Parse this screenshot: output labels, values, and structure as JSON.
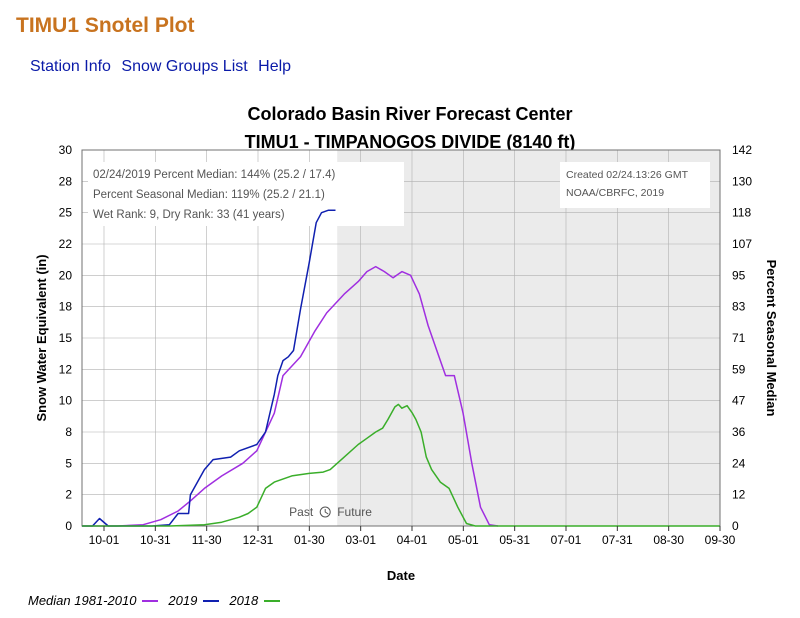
{
  "page": {
    "title": "TIMU1 Snotel Plot"
  },
  "nav": {
    "station_info": "Station Info",
    "snow_groups": "Snow Groups List",
    "help": "Help"
  },
  "colors": {
    "median": "#a02fe0",
    "y2019": "#1020b0",
    "y2018": "#3aae2a",
    "grid": "#b0b0b0",
    "future_shade": "#ebebeb"
  },
  "chart_data": {
    "type": "line",
    "title": "Colorado Basin River Forecast Center",
    "subtitle": "TIMU1 - TIMPANOGOS DIVIDE (8140 ft)",
    "xlabel": "Date",
    "ylabel": "Snow Water Equivalent (in)",
    "y2label": "Percent Seasonal Median",
    "x_ticks": [
      "10-01",
      "10-31",
      "11-30",
      "12-31",
      "01-30",
      "03-01",
      "04-01",
      "05-01",
      "05-31",
      "07-01",
      "07-31",
      "08-30",
      "09-30"
    ],
    "y_ticks": [
      "0",
      "2",
      "5",
      "8",
      "10",
      "12",
      "15",
      "18",
      "20",
      "22",
      "25",
      "28",
      "30"
    ],
    "y2_ticks": [
      "0",
      "12",
      "24",
      "36",
      "47",
      "59",
      "71",
      "83",
      "95",
      "107",
      "118",
      "130",
      "142"
    ],
    "ylim": [
      0,
      30
    ],
    "xlim_days": [
      0,
      365
    ],
    "today_day": 146,
    "past_label": "Past",
    "future_label": "Future",
    "info": {
      "line1": "02/24/2019 Percent Median: 144% (25.2 / 17.4)",
      "line2": "Percent Seasonal Median: 119% (25.2 / 21.1)",
      "line3": "Wet Rank: 9, Dry Rank: 33  (41 years)",
      "created": "Created 02/24.13:26 GMT",
      "credit": "NOAA/CBRFC, 2019"
    },
    "series": [
      {
        "name": "Median 1981-2010",
        "key": "median",
        "x": [
          0,
          20,
          35,
          45,
          55,
          62,
          70,
          80,
          92,
          100,
          110,
          115,
          125,
          133,
          140,
          150,
          158,
          163,
          168,
          173,
          178,
          183,
          188,
          193,
          198,
          203,
          208,
          213,
          218,
          223,
          228,
          233,
          238
        ],
        "y": [
          0,
          0,
          0.1,
          0.5,
          1.2,
          2.0,
          3.0,
          4.0,
          5.0,
          6.0,
          9.0,
          12.0,
          13.5,
          15.5,
          17,
          18.5,
          19.5,
          20.3,
          20.7,
          20.3,
          19.8,
          20.3,
          20.0,
          18.5,
          16.0,
          14.0,
          12.0,
          12.0,
          9.0,
          5.0,
          1.5,
          0.1,
          0
        ]
      },
      {
        "name": "2019",
        "key": "y2019",
        "x": [
          0,
          6,
          10,
          15,
          40,
          50,
          55,
          61,
          62,
          70,
          75,
          85,
          90,
          100,
          105,
          110,
          112,
          115,
          118,
          121,
          125,
          130,
          134,
          137,
          139,
          141,
          145
        ],
        "y": [
          0,
          0,
          0.6,
          0,
          0,
          0.1,
          1.0,
          1.0,
          2.5,
          4.5,
          5.3,
          5.5,
          6.0,
          6.5,
          7.5,
          10.5,
          12.0,
          13.2,
          13.5,
          14.0,
          17.3,
          21.0,
          24.2,
          25.0,
          25.1,
          25.2,
          25.2
        ]
      },
      {
        "name": "2018",
        "key": "y2018",
        "x": [
          0,
          50,
          70,
          80,
          85,
          90,
          95,
          100,
          105,
          110,
          120,
          130,
          138,
          142,
          150,
          158,
          163,
          168,
          172,
          175,
          179,
          181,
          183,
          186,
          189,
          191,
          194,
          197,
          200,
          205,
          210,
          215,
          220,
          225,
          232,
          240,
          300,
          365
        ],
        "y": [
          0,
          0,
          0.1,
          0.3,
          0.5,
          0.7,
          1.0,
          1.5,
          3.0,
          3.5,
          4.0,
          4.2,
          4.3,
          4.5,
          5.5,
          6.5,
          7.0,
          7.5,
          7.8,
          8.5,
          9.5,
          9.7,
          9.4,
          9.6,
          9.0,
          8.5,
          7.5,
          5.5,
          4.5,
          3.5,
          3.0,
          1.5,
          0.2,
          0,
          0,
          0,
          0,
          0
        ]
      }
    ]
  },
  "legend": {
    "median": "Median 1981-2010",
    "y2019": "2019",
    "y2018": "2018"
  }
}
